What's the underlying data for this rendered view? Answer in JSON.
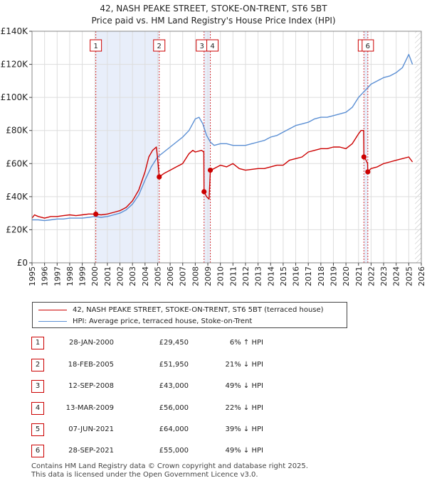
{
  "title_line1": "42, NASH PEAKE STREET, STOKE-ON-TRENT, ST6 5BT",
  "title_line2": "Price paid vs. HM Land Registry's House Price Index (HPI)",
  "legend": {
    "property": "42, NASH PEAKE STREET, STOKE-ON-TRENT, ST6 5BT (terraced house)",
    "hpi": "HPI: Average price, terraced house, Stoke-on-Trent"
  },
  "sales": [
    {
      "num": "1",
      "date": "28-JAN-2000",
      "price": "£29,450",
      "hpi": "6% ↑ HPI"
    },
    {
      "num": "2",
      "date": "18-FEB-2005",
      "price": "£51,950",
      "hpi": "21% ↓ HPI"
    },
    {
      "num": "3",
      "date": "12-SEP-2008",
      "price": "£43,000",
      "hpi": "49% ↓ HPI"
    },
    {
      "num": "4",
      "date": "13-MAR-2009",
      "price": "£56,000",
      "hpi": "22% ↓ HPI"
    },
    {
      "num": "5",
      "date": "07-JUN-2021",
      "price": "£64,000",
      "hpi": "39% ↓ HPI"
    },
    {
      "num": "6",
      "date": "28-SEP-2021",
      "price": "£55,000",
      "hpi": "49% ↓ HPI"
    }
  ],
  "footer": {
    "line1": "Contains HM Land Registry data © Crown copyright and database right 2025.",
    "line2": "This data is licensed under the Open Government Licence v3.0."
  },
  "colors": {
    "property": "#cc0000",
    "hpi": "#5b8fd4",
    "shade": "#e8eefa",
    "marker_line": "#cc0000",
    "grid": "#dddddd"
  },
  "chart_data": {
    "type": "line",
    "xlim": [
      1995,
      2026
    ],
    "ylim": [
      0,
      140000
    ],
    "yticks": [
      0,
      20000,
      40000,
      60000,
      80000,
      100000,
      120000,
      140000
    ],
    "ytick_labels": [
      "£0",
      "£20K",
      "£40K",
      "£60K",
      "£80K",
      "£100K",
      "£120K",
      "£140K"
    ],
    "xticks": [
      1995,
      1996,
      1997,
      1998,
      1999,
      2000,
      2001,
      2002,
      2003,
      2004,
      2005,
      2006,
      2007,
      2008,
      2009,
      2010,
      2011,
      2012,
      2013,
      2014,
      2015,
      2016,
      2017,
      2018,
      2019,
      2020,
      2021,
      2022,
      2023,
      2024,
      2025,
      2026
    ],
    "shaded_spans": [
      [
        2000.08,
        2005.13
      ],
      [
        2008.7,
        2009.2
      ],
      [
        2021.43,
        2021.74
      ]
    ],
    "hatch_from": 2025.5,
    "sale_markers": [
      {
        "label": "1",
        "x": 2000.08,
        "y": 29450
      },
      {
        "label": "2",
        "x": 2005.13,
        "y": 51950
      },
      {
        "label": "3",
        "x": 2008.7,
        "y": 43000
      },
      {
        "label": "4",
        "x": 2009.2,
        "y": 56000
      },
      {
        "label": "5",
        "x": 2021.43,
        "y": 64000
      },
      {
        "label": "6",
        "x": 2021.74,
        "y": 55000
      }
    ],
    "series": [
      {
        "name": "42, NASH PEAKE STREET, STOKE-ON-TRENT, ST6 5BT (terraced house)",
        "x": [
          1995.0,
          1995.2,
          1995.5,
          1996.0,
          1996.5,
          1997.0,
          1997.5,
          1998.0,
          1998.5,
          1999.0,
          1999.5,
          2000.08,
          2000.5,
          2001.0,
          2001.5,
          2002.0,
          2002.5,
          2003.0,
          2003.5,
          2004.0,
          2004.3,
          2004.6,
          2004.9,
          2005.0,
          2005.13,
          2005.5,
          2006.0,
          2006.5,
          2007.0,
          2007.5,
          2007.8,
          2008.0,
          2008.5,
          2008.68,
          2008.7,
          2008.9,
          2009.1,
          2009.2,
          2009.5,
          2010.0,
          2010.5,
          2011.0,
          2011.5,
          2012.0,
          2012.5,
          2013.0,
          2013.5,
          2014.0,
          2014.5,
          2015.0,
          2015.5,
          2016.0,
          2016.5,
          2017.0,
          2017.5,
          2018.0,
          2018.5,
          2019.0,
          2019.5,
          2020.0,
          2020.5,
          2021.0,
          2021.2,
          2021.41,
          2021.43,
          2021.6,
          2021.72,
          2021.74,
          2022.0,
          2022.5,
          2023.0,
          2023.5,
          2024.0,
          2024.5,
          2025.0,
          2025.3
        ],
        "values": [
          27000,
          29000,
          28000,
          27000,
          28000,
          28000,
          28500,
          29000,
          28500,
          29000,
          29500,
          29450,
          29000,
          29500,
          30500,
          31500,
          33500,
          37500,
          44000,
          55000,
          64000,
          68000,
          70000,
          63000,
          51950,
          54000,
          56000,
          58000,
          60000,
          66000,
          68000,
          67000,
          68000,
          67000,
          43000,
          40000,
          38500,
          56000,
          57000,
          59000,
          58000,
          60000,
          57000,
          56000,
          56500,
          57000,
          57000,
          58000,
          59000,
          59000,
          62000,
          63000,
          64000,
          67000,
          68000,
          69000,
          69000,
          70000,
          70000,
          69000,
          72000,
          78000,
          80000,
          80000,
          64000,
          62000,
          60000,
          55000,
          57000,
          58000,
          60000,
          61000,
          62000,
          63000,
          64000,
          61000
        ]
      },
      {
        "name": "HPI: Average price, terraced house, Stoke-on-Trent",
        "x": [
          1995.0,
          1995.5,
          1996.0,
          1996.5,
          1997.0,
          1997.5,
          1998.0,
          1998.5,
          1999.0,
          1999.5,
          2000.0,
          2000.5,
          2001.0,
          2001.5,
          2002.0,
          2002.5,
          2003.0,
          2003.5,
          2004.0,
          2004.5,
          2005.0,
          2005.5,
          2006.0,
          2006.5,
          2007.0,
          2007.5,
          2008.0,
          2008.3,
          2008.6,
          2008.9,
          2009.2,
          2009.5,
          2010.0,
          2010.5,
          2011.0,
          2011.5,
          2012.0,
          2012.5,
          2013.0,
          2013.5,
          2014.0,
          2014.5,
          2015.0,
          2015.5,
          2016.0,
          2016.5,
          2017.0,
          2017.5,
          2018.0,
          2018.5,
          2019.0,
          2019.5,
          2020.0,
          2020.5,
          2021.0,
          2021.5,
          2022.0,
          2022.5,
          2023.0,
          2023.5,
          2024.0,
          2024.5,
          2025.0,
          2025.3
        ],
        "values": [
          26000,
          26000,
          25500,
          26000,
          26500,
          26500,
          27000,
          27000,
          27000,
          27500,
          28000,
          27500,
          28000,
          29000,
          30000,
          32000,
          35500,
          41000,
          50000,
          58000,
          64000,
          67000,
          70000,
          73000,
          76000,
          80000,
          87000,
          88000,
          84000,
          77000,
          73000,
          71000,
          72000,
          72000,
          71000,
          71000,
          71000,
          72000,
          73000,
          74000,
          76000,
          77000,
          79000,
          81000,
          83000,
          84000,
          85000,
          87000,
          88000,
          88000,
          89000,
          90000,
          91000,
          94000,
          100000,
          104000,
          108000,
          110000,
          112000,
          113000,
          115000,
          118000,
          126000,
          120000
        ]
      }
    ]
  }
}
